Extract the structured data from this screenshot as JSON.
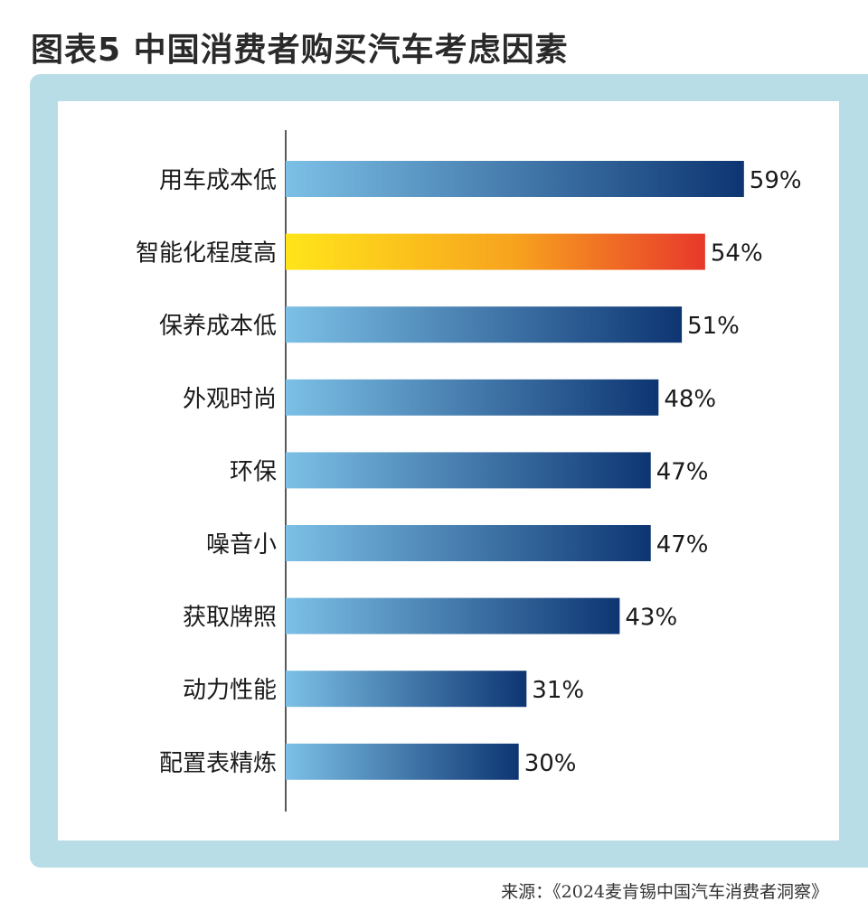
{
  "title": "图表5  中国消费者购买汽车考虑因素",
  "source": "来源：《2024麦肯锡中国汽车消费者洞察》",
  "colors": {
    "bar_blue_start": "#7cc0e6",
    "bar_blue_end": "#0d3572",
    "bar_highlight_start": "#ffe51a",
    "bar_highlight_end": "#e8382b",
    "frame": "#b9dde6"
  },
  "chart_data": {
    "type": "bar",
    "orientation": "horizontal",
    "title": "图表5  中国消费者购买汽车考虑因素",
    "categories": [
      "用车成本低",
      "智能化程度高",
      "保养成本低",
      "外观时尚",
      "环保",
      "噪音小",
      "获取牌照",
      "动力性能",
      "配置表精炼"
    ],
    "values": [
      59,
      54,
      51,
      48,
      47,
      47,
      43,
      31,
      30
    ],
    "value_labels": [
      "59%",
      "54%",
      "51%",
      "48%",
      "47%",
      "47%",
      "43%",
      "31%",
      "30%"
    ],
    "highlight_index": 1,
    "unit": "%",
    "xlim": [
      0,
      100
    ],
    "grid": false,
    "legend": "none"
  }
}
